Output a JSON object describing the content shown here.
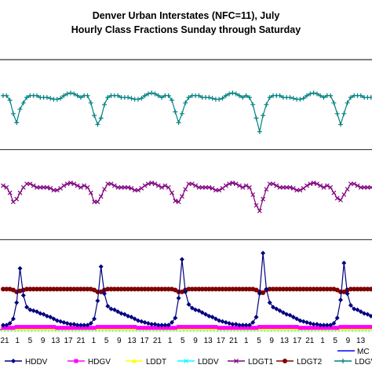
{
  "chart_data": {
    "type": "line",
    "title": "Denver Urban Interstates (NFC=11), July",
    "subtitle": "Hourly Class Fractions Sunday through Saturday",
    "xlabel": "",
    "ylabel": "",
    "hours_per_day": 24,
    "days_visible": 5,
    "tick_labels_repeat": [
      "21",
      "1",
      "5",
      "9",
      "13",
      "17"
    ],
    "tick_labels_start": [
      "21"
    ],
    "grid": "horizontal",
    "legend_position": "bottom",
    "series": [
      {
        "name": "HDDV",
        "color": "#000080",
        "marker": "diamond",
        "values": [
          0.05,
          0.05,
          0.07,
          0.12,
          0.3,
          0.68,
          0.38,
          0.25,
          0.22,
          0.21,
          0.2,
          0.18,
          0.17,
          0.15,
          0.14,
          0.12,
          0.1,
          0.09,
          0.08,
          0.07,
          0.06,
          0.06,
          0.05,
          0.05,
          0.05,
          0.05,
          0.07,
          0.12,
          0.32,
          0.7,
          0.4,
          0.26,
          0.23,
          0.22,
          0.2,
          0.18,
          0.17,
          0.15,
          0.14,
          0.12,
          0.1,
          0.09,
          0.08,
          0.07,
          0.06,
          0.06,
          0.05,
          0.05,
          0.05,
          0.05,
          0.08,
          0.13,
          0.35,
          0.78,
          0.42,
          0.28,
          0.24,
          0.22,
          0.21,
          0.19,
          0.17,
          0.15,
          0.14,
          0.12,
          0.1,
          0.09,
          0.08,
          0.07,
          0.06,
          0.06,
          0.05,
          0.05,
          0.05,
          0.05,
          0.08,
          0.14,
          0.4,
          0.85,
          0.45,
          0.3,
          0.25,
          0.23,
          0.21,
          0.19,
          0.17,
          0.16,
          0.14,
          0.12,
          0.1,
          0.09,
          0.08,
          0.07,
          0.06,
          0.06,
          0.05,
          0.05,
          0.05,
          0.05,
          0.07,
          0.13,
          0.33,
          0.74,
          0.4,
          0.27,
          0.23,
          0.22,
          0.2,
          0.18,
          0.17,
          0.15,
          0.14,
          0.12,
          0.1,
          0.09,
          0.08,
          0.07,
          0.06,
          0.06
        ]
      },
      {
        "name": "HDGV",
        "color": "#ff00ff",
        "marker": "square",
        "values": [
          0.02,
          0.02,
          0.02,
          0.02,
          0.03,
          0.03,
          0.03,
          0.03,
          0.03,
          0.03,
          0.03,
          0.03,
          0.03,
          0.03,
          0.03,
          0.03,
          0.02,
          0.02,
          0.02,
          0.02,
          0.02,
          0.02,
          0.02,
          0.02,
          0.02,
          0.02,
          0.02,
          0.02,
          0.03,
          0.03,
          0.03,
          0.03,
          0.03,
          0.03,
          0.03,
          0.03,
          0.03,
          0.03,
          0.03,
          0.03,
          0.02,
          0.02,
          0.02,
          0.02,
          0.02,
          0.02,
          0.02,
          0.02,
          0.02,
          0.02,
          0.02,
          0.02,
          0.03,
          0.03,
          0.03,
          0.03,
          0.03,
          0.03,
          0.03,
          0.03,
          0.03,
          0.03,
          0.03,
          0.03,
          0.02,
          0.02,
          0.02,
          0.02,
          0.02,
          0.02,
          0.02,
          0.02,
          0.02,
          0.02,
          0.02,
          0.02,
          0.03,
          0.03,
          0.03,
          0.03,
          0.03,
          0.03,
          0.03,
          0.03,
          0.03,
          0.03,
          0.03,
          0.03,
          0.02,
          0.02,
          0.02,
          0.02,
          0.02,
          0.02,
          0.02,
          0.02,
          0.02,
          0.02,
          0.02,
          0.02,
          0.03,
          0.03,
          0.03,
          0.03,
          0.03,
          0.03,
          0.03,
          0.03,
          0.03,
          0.03,
          0.03,
          0.03,
          0.02,
          0.02,
          0.02,
          0.02,
          0.02,
          0.02
        ]
      },
      {
        "name": "LDDT",
        "color": "#ffff00",
        "marker": "triangle",
        "values": [
          0.01,
          0.01,
          0.01,
          0.01,
          0.01,
          0.01,
          0.01,
          0.01,
          0.01,
          0.01,
          0.01,
          0.01,
          0.01,
          0.01,
          0.01,
          0.01,
          0.01,
          0.01,
          0.01,
          0.01,
          0.01,
          0.01,
          0.01,
          0.01,
          0.01,
          0.01,
          0.01,
          0.01,
          0.01,
          0.01,
          0.01,
          0.01,
          0.01,
          0.01,
          0.01,
          0.01,
          0.01,
          0.01,
          0.01,
          0.01,
          0.01,
          0.01,
          0.01,
          0.01,
          0.01,
          0.01,
          0.01,
          0.01,
          0.01,
          0.01,
          0.01,
          0.01,
          0.01,
          0.01,
          0.01,
          0.01,
          0.01,
          0.01,
          0.01,
          0.01,
          0.01,
          0.01,
          0.01,
          0.01,
          0.01,
          0.01,
          0.01,
          0.01,
          0.01,
          0.01,
          0.01,
          0.01,
          0.01,
          0.01,
          0.01,
          0.01,
          0.01,
          0.01,
          0.01,
          0.01,
          0.01,
          0.01,
          0.01,
          0.01,
          0.01,
          0.01,
          0.01,
          0.01,
          0.01,
          0.01,
          0.01,
          0.01,
          0.01,
          0.01,
          0.01,
          0.01,
          0.01,
          0.01,
          0.01,
          0.01,
          0.01,
          0.01,
          0.01,
          0.01,
          0.01,
          0.01,
          0.01,
          0.01,
          0.01,
          0.01,
          0.01,
          0.01,
          0.01,
          0.01,
          0.01,
          0.01,
          0.01,
          0.01
        ]
      },
      {
        "name": "LDDV",
        "color": "#00ffff",
        "marker": "x",
        "values": [
          0.0,
          0.0,
          0.0,
          0.0,
          0.0,
          0.0,
          0.0,
          0.0,
          0.0,
          0.0,
          0.0,
          0.0,
          0.0,
          0.0,
          0.0,
          0.0,
          0.0,
          0.0,
          0.0,
          0.0,
          0.0,
          0.0,
          0.0,
          0.0,
          0.0,
          0.0,
          0.0,
          0.0,
          0.0,
          0.0,
          0.0,
          0.0,
          0.0,
          0.0,
          0.0,
          0.0,
          0.0,
          0.0,
          0.0,
          0.0,
          0.0,
          0.0,
          0.0,
          0.0,
          0.0,
          0.0,
          0.0,
          0.0,
          0.0,
          0.0,
          0.0,
          0.0,
          0.0,
          0.0,
          0.0,
          0.0,
          0.0,
          0.0,
          0.0,
          0.0,
          0.0,
          0.0,
          0.0,
          0.0,
          0.0,
          0.0,
          0.0,
          0.0,
          0.0,
          0.0,
          0.0,
          0.0,
          0.0,
          0.0,
          0.0,
          0.0,
          0.0,
          0.0,
          0.0,
          0.0,
          0.0,
          0.0,
          0.0,
          0.0,
          0.0,
          0.0,
          0.0,
          0.0,
          0.0,
          0.0,
          0.0,
          0.0,
          0.0,
          0.0,
          0.0,
          0.0,
          0.0,
          0.0,
          0.0,
          0.0,
          0.0,
          0.0,
          0.0,
          0.0,
          0.0,
          0.0,
          0.0,
          0.0,
          0.0,
          0.0,
          0.0,
          0.0,
          0.0,
          0.0,
          0.0,
          0.0,
          0.0,
          0.0
        ]
      },
      {
        "name": "LDGT1",
        "color": "#800080",
        "marker": "x",
        "values": [
          1.6,
          1.58,
          1.52,
          1.42,
          1.45,
          1.52,
          1.58,
          1.62,
          1.62,
          1.6,
          1.58,
          1.58,
          1.58,
          1.58,
          1.57,
          1.55,
          1.55,
          1.57,
          1.6,
          1.62,
          1.63,
          1.62,
          1.6,
          1.58,
          1.6,
          1.58,
          1.52,
          1.42,
          1.42,
          1.48,
          1.56,
          1.62,
          1.62,
          1.6,
          1.58,
          1.58,
          1.58,
          1.58,
          1.57,
          1.55,
          1.55,
          1.57,
          1.6,
          1.62,
          1.63,
          1.62,
          1.6,
          1.58,
          1.6,
          1.58,
          1.52,
          1.43,
          1.42,
          1.48,
          1.56,
          1.62,
          1.62,
          1.6,
          1.58,
          1.58,
          1.58,
          1.58,
          1.57,
          1.55,
          1.55,
          1.57,
          1.6,
          1.62,
          1.63,
          1.62,
          1.6,
          1.58,
          1.6,
          1.58,
          1.5,
          1.38,
          1.32,
          1.45,
          1.56,
          1.62,
          1.62,
          1.6,
          1.58,
          1.58,
          1.58,
          1.58,
          1.57,
          1.55,
          1.55,
          1.57,
          1.6,
          1.62,
          1.63,
          1.62,
          1.6,
          1.58,
          1.6,
          1.58,
          1.52,
          1.46,
          1.44,
          1.5,
          1.56,
          1.62,
          1.62,
          1.6,
          1.58,
          1.58,
          1.58,
          1.58,
          1.57,
          1.55,
          1.55,
          1.57,
          1.6,
          1.62,
          1.63,
          1.62
        ]
      },
      {
        "name": "LDGT2",
        "color": "#800000",
        "marker": "circle",
        "values": [
          0.45,
          0.45,
          0.45,
          0.44,
          0.42,
          0.43,
          0.44,
          0.45,
          0.45,
          0.45,
          0.45,
          0.45,
          0.45,
          0.45,
          0.45,
          0.45,
          0.45,
          0.45,
          0.45,
          0.45,
          0.45,
          0.45,
          0.45,
          0.45,
          0.45,
          0.45,
          0.45,
          0.44,
          0.42,
          0.42,
          0.44,
          0.45,
          0.45,
          0.45,
          0.45,
          0.45,
          0.45,
          0.45,
          0.45,
          0.45,
          0.45,
          0.45,
          0.45,
          0.45,
          0.45,
          0.45,
          0.45,
          0.45,
          0.45,
          0.45,
          0.45,
          0.44,
          0.42,
          0.42,
          0.44,
          0.45,
          0.45,
          0.45,
          0.45,
          0.45,
          0.45,
          0.45,
          0.45,
          0.45,
          0.45,
          0.45,
          0.45,
          0.45,
          0.45,
          0.45,
          0.45,
          0.45,
          0.45,
          0.45,
          0.45,
          0.44,
          0.42,
          0.41,
          0.44,
          0.45,
          0.45,
          0.45,
          0.45,
          0.45,
          0.45,
          0.45,
          0.45,
          0.45,
          0.45,
          0.45,
          0.45,
          0.45,
          0.45,
          0.45,
          0.45,
          0.45,
          0.45,
          0.45,
          0.45,
          0.44,
          0.42,
          0.42,
          0.44,
          0.45,
          0.45,
          0.45,
          0.45,
          0.45,
          0.45,
          0.45,
          0.45,
          0.45,
          0.45,
          0.45,
          0.45,
          0.45,
          0.45,
          0.45
        ]
      },
      {
        "name": "LDGV",
        "color": "#008080",
        "marker": "plus",
        "values": [
          2.6,
          2.6,
          2.55,
          2.4,
          2.3,
          2.45,
          2.52,
          2.58,
          2.6,
          2.6,
          2.6,
          2.58,
          2.58,
          2.58,
          2.57,
          2.56,
          2.56,
          2.57,
          2.6,
          2.62,
          2.63,
          2.62,
          2.6,
          2.58,
          2.6,
          2.6,
          2.52,
          2.38,
          2.28,
          2.35,
          2.5,
          2.58,
          2.6,
          2.6,
          2.6,
          2.58,
          2.58,
          2.58,
          2.57,
          2.56,
          2.56,
          2.57,
          2.6,
          2.62,
          2.63,
          2.62,
          2.6,
          2.58,
          2.6,
          2.6,
          2.55,
          2.42,
          2.3,
          2.4,
          2.52,
          2.58,
          2.6,
          2.6,
          2.6,
          2.58,
          2.58,
          2.58,
          2.57,
          2.56,
          2.56,
          2.57,
          2.6,
          2.62,
          2.63,
          2.62,
          2.6,
          2.58,
          2.6,
          2.58,
          2.5,
          2.35,
          2.2,
          2.38,
          2.5,
          2.58,
          2.6,
          2.6,
          2.6,
          2.58,
          2.58,
          2.58,
          2.57,
          2.56,
          2.56,
          2.57,
          2.6,
          2.62,
          2.63,
          2.62,
          2.6,
          2.58,
          2.6,
          2.6,
          2.52,
          2.4,
          2.28,
          2.4,
          2.52,
          2.58,
          2.6,
          2.6,
          2.6,
          2.58,
          2.58,
          2.58,
          2.57,
          2.56,
          2.56,
          2.57,
          2.6,
          2.62,
          2.63,
          2.62
        ]
      },
      {
        "name": "MC",
        "color": "#0000ff",
        "marker": "none",
        "values": []
      }
    ]
  }
}
